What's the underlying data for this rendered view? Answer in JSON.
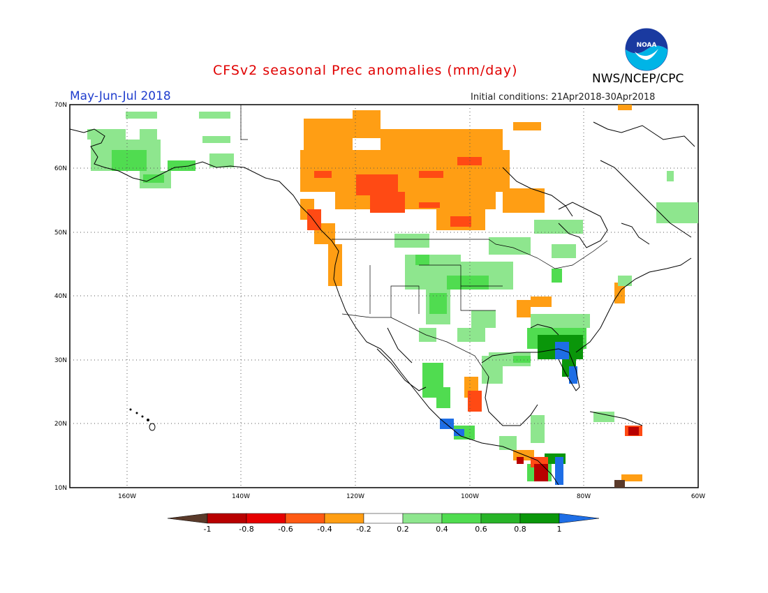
{
  "header": {
    "title": "CFSv2 seasonal Prec anomalies (mm/day)",
    "period": "May-Jun-Jul 2018",
    "initial_conditions": "Initial conditions: 21Apr2018-30Apr2018",
    "agency": "NWS/NCEP/CPC",
    "logo_text": "NOAA"
  },
  "map": {
    "lon_range": [
      -170,
      -60
    ],
    "lat_range": [
      10,
      70
    ],
    "lat_labels": [
      "70N",
      "60N",
      "50N",
      "40N",
      "30N",
      "20N",
      "10N"
    ],
    "lon_labels": [
      "160W",
      "140W",
      "120W",
      "100W",
      "80W",
      "60W"
    ],
    "grid": "dotted"
  },
  "legend": {
    "labels": [
      "-1",
      "-0.8",
      "-0.6",
      "-0.4",
      "-0.2",
      "0.2",
      "0.4",
      "0.6",
      "0.8",
      "1"
    ],
    "colors": [
      "#5a3a2a",
      "#b80000",
      "#e60000",
      "#ff5a14",
      "#ff9e14",
      "#ffffff",
      "#8ee68e",
      "#50dc50",
      "#28b428",
      "#0a960a",
      "#1e6ee6"
    ]
  },
  "anomaly_regions": [
    {
      "name": "canada-dry",
      "level": "-0.4",
      "color": "#ff9e14"
    },
    {
      "name": "canada-dry-core",
      "level": "-0.6",
      "color": "#ff4a14"
    },
    {
      "name": "alaska-wet",
      "level": "0.4",
      "color": "#50dc50"
    },
    {
      "name": "us-plains-wet",
      "level": "0.2",
      "color": "#8ee68e"
    },
    {
      "name": "southeast-wet",
      "level": "0.8",
      "color": "#0a960a"
    },
    {
      "name": "florida-very-wet",
      "level": "1",
      "color": "#1e6ee6"
    },
    {
      "name": "central-america-dry",
      "level": "-0.8",
      "color": "#b80000"
    }
  ]
}
